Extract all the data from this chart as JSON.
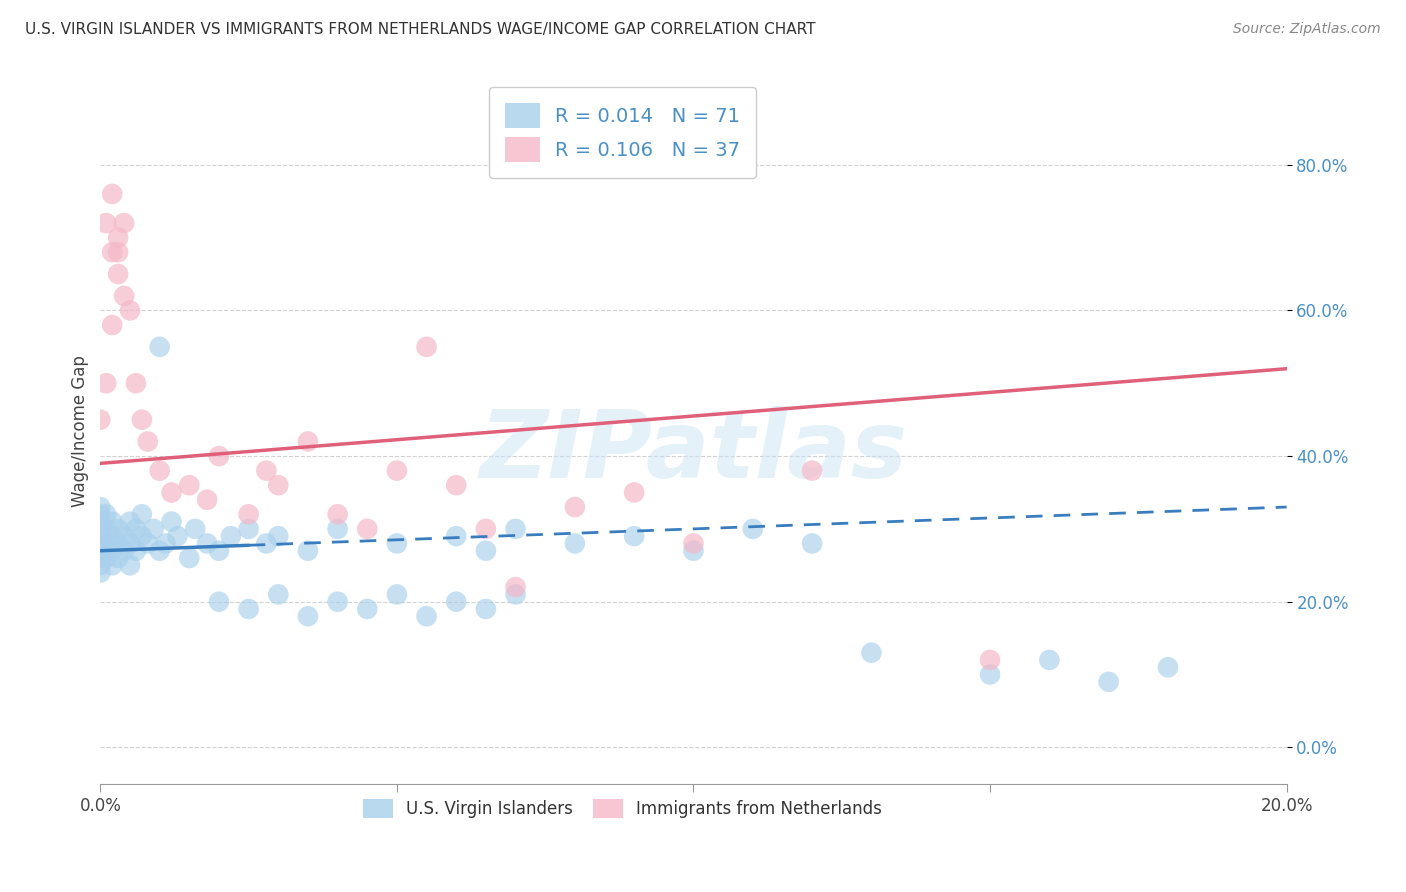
{
  "title": "U.S. VIRGIN ISLANDER VS IMMIGRANTS FROM NETHERLANDS WAGE/INCOME GAP CORRELATION CHART",
  "source": "Source: ZipAtlas.com",
  "ylabel": "Wage/Income Gap",
  "xlim": [
    0.0,
    0.2
  ],
  "ylim": [
    -0.05,
    0.92
  ],
  "ytick_values": [
    0.0,
    0.2,
    0.4,
    0.6,
    0.8
  ],
  "xtick_values": [
    0.0,
    0.05,
    0.1,
    0.15,
    0.2
  ],
  "xtick_labels": [
    "0.0%",
    "",
    "",
    "",
    "20.0%"
  ],
  "blue_color": "#a8d0ec",
  "pink_color": "#f4b8c8",
  "blue_line_color": "#3a7dbf",
  "pink_line_color": "#e0607a",
  "watermark": "ZIPatlas",
  "legend_bottom_label1": "U.S. Virgin Islanders",
  "legend_bottom_label2": "Immigrants from Netherlands",
  "blue_scatter_x": [
    0.0,
    0.0,
    0.0,
    0.0,
    0.0,
    0.0,
    0.0,
    0.0,
    0.0,
    0.0,
    0.001,
    0.001,
    0.001,
    0.001,
    0.001,
    0.002,
    0.002,
    0.002,
    0.002,
    0.003,
    0.003,
    0.003,
    0.004,
    0.004,
    0.005,
    0.005,
    0.005,
    0.006,
    0.006,
    0.007,
    0.007,
    0.008,
    0.009,
    0.01,
    0.01,
    0.011,
    0.012,
    0.013,
    0.015,
    0.016,
    0.018,
    0.02,
    0.022,
    0.025,
    0.028,
    0.03,
    0.035,
    0.04,
    0.05,
    0.06,
    0.065,
    0.07,
    0.08,
    0.09,
    0.1,
    0.11,
    0.12,
    0.13,
    0.15,
    0.16,
    0.17,
    0.18,
    0.02,
    0.025,
    0.03,
    0.035,
    0.04,
    0.045,
    0.05,
    0.055,
    0.06,
    0.065,
    0.07
  ],
  "blue_scatter_y": [
    0.27,
    0.29,
    0.31,
    0.28,
    0.3,
    0.26,
    0.32,
    0.24,
    0.33,
    0.25,
    0.27,
    0.3,
    0.28,
    0.26,
    0.32,
    0.25,
    0.29,
    0.31,
    0.27,
    0.28,
    0.3,
    0.26,
    0.29,
    0.27,
    0.28,
    0.31,
    0.25,
    0.3,
    0.27,
    0.29,
    0.32,
    0.28,
    0.3,
    0.27,
    0.55,
    0.28,
    0.31,
    0.29,
    0.26,
    0.3,
    0.28,
    0.27,
    0.29,
    0.3,
    0.28,
    0.29,
    0.27,
    0.3,
    0.28,
    0.29,
    0.27,
    0.3,
    0.28,
    0.29,
    0.27,
    0.3,
    0.28,
    0.13,
    0.1,
    0.12,
    0.09,
    0.11,
    0.2,
    0.19,
    0.21,
    0.18,
    0.2,
    0.19,
    0.21,
    0.18,
    0.2,
    0.19,
    0.21
  ],
  "pink_scatter_x": [
    0.001,
    0.002,
    0.002,
    0.003,
    0.003,
    0.004,
    0.005,
    0.006,
    0.007,
    0.008,
    0.01,
    0.012,
    0.015,
    0.018,
    0.02,
    0.025,
    0.028,
    0.03,
    0.035,
    0.04,
    0.045,
    0.05,
    0.055,
    0.06,
    0.065,
    0.07,
    0.08,
    0.09,
    0.1,
    0.12,
    0.15,
    0.0,
    0.001,
    0.002,
    0.003,
    0.004
  ],
  "pink_scatter_y": [
    0.72,
    0.68,
    0.76,
    0.65,
    0.7,
    0.62,
    0.6,
    0.5,
    0.45,
    0.42,
    0.38,
    0.35,
    0.36,
    0.34,
    0.4,
    0.32,
    0.38,
    0.36,
    0.42,
    0.32,
    0.3,
    0.38,
    0.55,
    0.36,
    0.3,
    0.22,
    0.33,
    0.35,
    0.28,
    0.38,
    0.12,
    0.45,
    0.5,
    0.58,
    0.68,
    0.72
  ]
}
